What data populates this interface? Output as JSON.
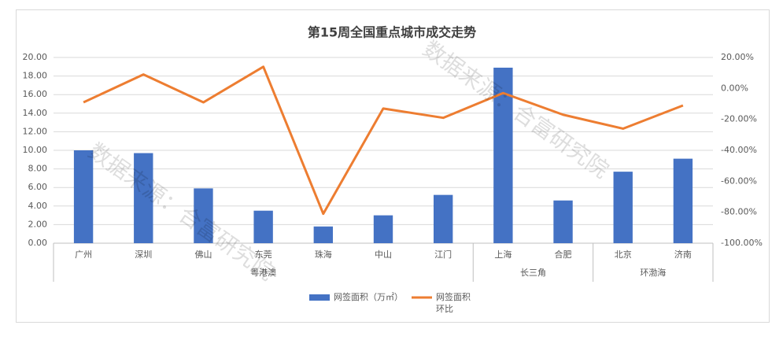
{
  "chart_data": {
    "type": "bar-line",
    "title": "第15周全国重点城市成交走势",
    "categories": [
      "广州",
      "深圳",
      "佛山",
      "东莞",
      "珠海",
      "中山",
      "江门",
      "上海",
      "合肥",
      "北京",
      "济南"
    ],
    "x_groups": [
      {
        "label": "粤港澳",
        "size": 7
      },
      {
        "label": "长三角",
        "size": 2
      },
      {
        "label": "环渤海",
        "size": 2
      }
    ],
    "series": [
      {
        "name": "网签面积（万㎡）",
        "type": "bar",
        "color": "#4472c4",
        "values": [
          10.0,
          9.7,
          5.9,
          3.5,
          1.8,
          3.0,
          5.2,
          18.9,
          4.6,
          7.7,
          9.1
        ]
      },
      {
        "name": "网签面积环比",
        "type": "line",
        "axis": "y2",
        "color": "#ed7d31",
        "values": [
          -9,
          9,
          -9,
          14,
          -81,
          -13,
          -19,
          -3,
          -17,
          -26,
          -11
        ]
      }
    ],
    "ylim": [
      0,
      20
    ],
    "yticks": [
      {
        "value": 0,
        "label": "0.00"
      },
      {
        "value": 2,
        "label": "2.00"
      },
      {
        "value": 4,
        "label": "4.00"
      },
      {
        "value": 6,
        "label": "6.00"
      },
      {
        "value": 8,
        "label": "8.00"
      },
      {
        "value": 10,
        "label": "10.00"
      },
      {
        "value": 12,
        "label": "12.00"
      },
      {
        "value": 14,
        "label": "14.00"
      },
      {
        "value": 16,
        "label": "16.00"
      },
      {
        "value": 18,
        "label": "18.00"
      },
      {
        "value": 20,
        "label": "20.00"
      }
    ],
    "y2lim": [
      -100,
      20
    ],
    "y2ticks": [
      {
        "value": -100,
        "label": "-100.00%"
      },
      {
        "value": -80,
        "label": "-80.00%"
      },
      {
        "value": -60,
        "label": "-60.00%"
      },
      {
        "value": -40,
        "label": "-40.00%"
      },
      {
        "value": -20,
        "label": "-20.00%"
      },
      {
        "value": 0,
        "label": "0.00%"
      },
      {
        "value": 20,
        "label": "20.00%"
      }
    ],
    "grid": true,
    "legend": "bottom",
    "watermark": "数据来源：合富研究院"
  }
}
